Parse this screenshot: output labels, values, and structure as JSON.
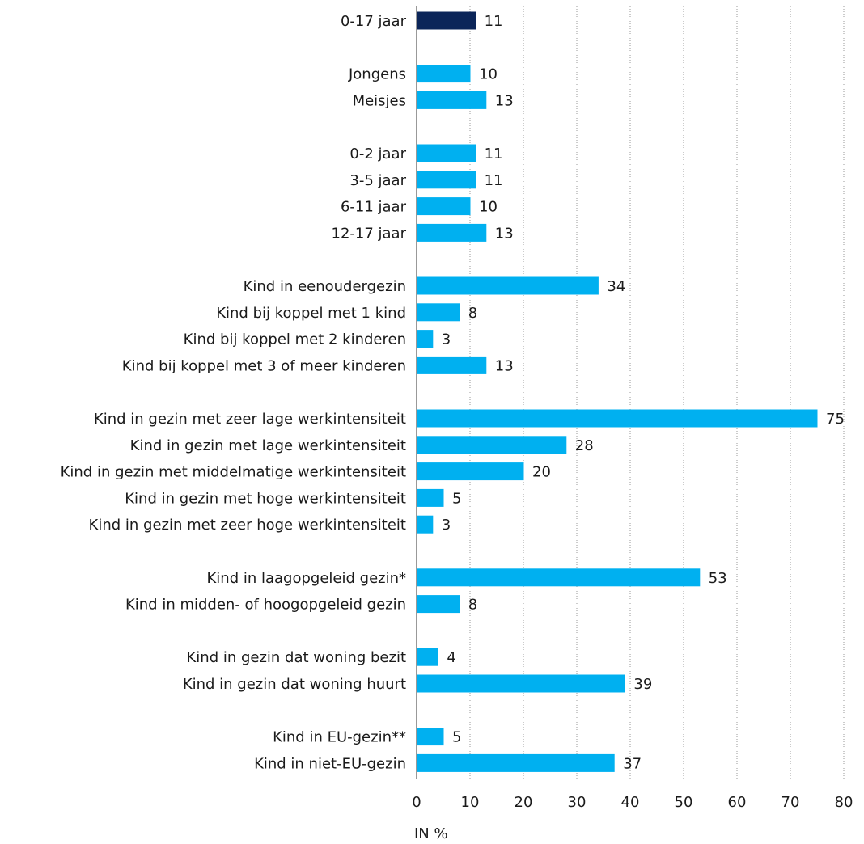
{
  "chart_data": {
    "type": "bar",
    "orientation": "horizontal",
    "xlabel": "IN %",
    "xlim": [
      0,
      80
    ],
    "xticks": [
      0,
      10,
      20,
      30,
      40,
      50,
      60,
      70,
      80
    ],
    "grid": true,
    "categories": [
      "0-17 jaar",
      "Jongens",
      "Meisjes",
      "0-2 jaar",
      "3-5 jaar",
      "6-11 jaar",
      "12-17 jaar",
      "Kind in eenoudergezin",
      "Kind bij koppel met 1 kind",
      "Kind bij koppel met 2 kinderen",
      "Kind bij koppel met 3 of meer kinderen",
      "Kind in gezin met zeer lage werkintensiteit",
      "Kind in gezin met lage werkintensiteit",
      "Kind in gezin met middelmatige werkintensiteit",
      "Kind in gezin met hoge werkintensiteit",
      "Kind in gezin met zeer hoge werkintensiteit",
      "Kind in laagopgeleid gezin*",
      "Kind in midden- of hoogopgeleid gezin",
      "Kind in gezin dat woning bezit",
      "Kind in gezin dat woning huurt",
      "Kind in EU-gezin**",
      "Kind in niet-EU-gezin"
    ],
    "values": [
      11,
      10,
      13,
      11,
      11,
      10,
      13,
      34,
      8,
      3,
      13,
      75,
      28,
      20,
      5,
      3,
      53,
      8,
      4,
      39,
      5,
      37
    ],
    "groups": [
      0,
      1,
      1,
      2,
      2,
      2,
      2,
      3,
      3,
      3,
      3,
      4,
      4,
      4,
      4,
      4,
      5,
      5,
      6,
      6,
      7,
      7
    ],
    "colors": {
      "total": "#0b2559",
      "default": "#00b0f0"
    },
    "highlight_index": 0
  }
}
